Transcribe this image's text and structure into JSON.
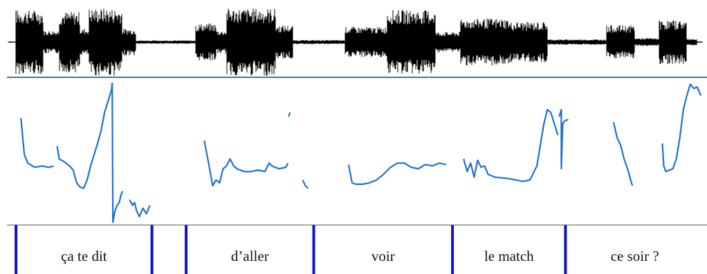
{
  "colors": {
    "waveform": "#000000",
    "divider": "#3b7a8c",
    "pitch": "#1f6fd6",
    "boundary": "#1010c8",
    "frame": "#555555",
    "text": "#111111"
  },
  "waveform": {
    "description_free": true,
    "segments": [
      {
        "from": 0.012,
        "to": 0.052,
        "amp": 0.95
      },
      {
        "from": 0.052,
        "to": 0.075,
        "amp": 0.35
      },
      {
        "from": 0.075,
        "to": 0.105,
        "amp": 0.9
      },
      {
        "from": 0.105,
        "to": 0.118,
        "amp": 0.4
      },
      {
        "from": 0.118,
        "to": 0.165,
        "amp": 1.0
      },
      {
        "from": 0.165,
        "to": 0.185,
        "amp": 0.4
      },
      {
        "from": 0.185,
        "to": 0.27,
        "amp": 0.05
      },
      {
        "from": 0.27,
        "to": 0.3,
        "amp": 0.55
      },
      {
        "from": 0.3,
        "to": 0.315,
        "amp": 0.35
      },
      {
        "from": 0.315,
        "to": 0.385,
        "amp": 1.0
      },
      {
        "from": 0.385,
        "to": 0.41,
        "amp": 0.5
      },
      {
        "from": 0.41,
        "to": 0.485,
        "amp": 0.06
      },
      {
        "from": 0.485,
        "to": 0.545,
        "amp": 0.45
      },
      {
        "from": 0.545,
        "to": 0.615,
        "amp": 0.95
      },
      {
        "from": 0.615,
        "to": 0.65,
        "amp": 0.3
      },
      {
        "from": 0.65,
        "to": 0.72,
        "amp": 0.7
      },
      {
        "from": 0.72,
        "to": 0.775,
        "amp": 0.6
      },
      {
        "from": 0.775,
        "to": 0.86,
        "amp": 0.08
      },
      {
        "from": 0.86,
        "to": 0.9,
        "amp": 0.5
      },
      {
        "from": 0.9,
        "to": 0.935,
        "amp": 0.12
      },
      {
        "from": 0.935,
        "to": 0.975,
        "amp": 0.65
      },
      {
        "from": 0.975,
        "to": 0.99,
        "amp": 0.1
      }
    ]
  },
  "pitch_contour": {
    "segments": [
      [
        [
          0.02,
          0.26
        ],
        [
          0.025,
          0.52
        ],
        [
          0.03,
          0.58
        ],
        [
          0.04,
          0.61
        ],
        [
          0.05,
          0.6
        ],
        [
          0.06,
          0.61
        ],
        [
          0.067,
          0.6
        ]
      ],
      [
        [
          0.072,
          0.46
        ],
        [
          0.075,
          0.55
        ],
        [
          0.082,
          0.57
        ],
        [
          0.09,
          0.6
        ],
        [
          0.095,
          0.63
        ],
        [
          0.1,
          0.72
        ],
        [
          0.105,
          0.75
        ],
        [
          0.11,
          0.76
        ],
        [
          0.115,
          0.7
        ],
        [
          0.12,
          0.6
        ],
        [
          0.125,
          0.52
        ],
        [
          0.13,
          0.44
        ],
        [
          0.135,
          0.35
        ],
        [
          0.14,
          0.22
        ],
        [
          0.145,
          0.14
        ],
        [
          0.15,
          0.06
        ],
        [
          0.151,
          0.01
        ]
      ],
      [
        [
          0.151,
          0.01
        ],
        [
          0.152,
          1.0
        ],
        [
          0.155,
          0.92
        ],
        [
          0.158,
          0.88
        ],
        [
          0.161,
          0.86
        ],
        [
          0.164,
          0.8
        ],
        [
          0.166,
          0.78
        ]
      ],
      [
        [
          0.176,
          0.84
        ],
        [
          0.18,
          0.88
        ],
        [
          0.183,
          0.86
        ],
        [
          0.186,
          0.92
        ],
        [
          0.19,
          0.96
        ],
        [
          0.195,
          0.9
        ],
        [
          0.2,
          0.94
        ],
        [
          0.205,
          0.88
        ]
      ],
      [
        [
          0.283,
          0.42
        ],
        [
          0.29,
          0.6
        ],
        [
          0.295,
          0.74
        ],
        [
          0.3,
          0.7
        ],
        [
          0.305,
          0.72
        ],
        [
          0.31,
          0.62
        ],
        [
          0.315,
          0.6
        ],
        [
          0.32,
          0.55
        ],
        [
          0.325,
          0.6
        ],
        [
          0.33,
          0.62
        ],
        [
          0.335,
          0.63
        ],
        [
          0.34,
          0.64
        ],
        [
          0.35,
          0.64
        ],
        [
          0.36,
          0.63
        ],
        [
          0.37,
          0.64
        ],
        [
          0.376,
          0.58
        ],
        [
          0.38,
          0.6
        ],
        [
          0.39,
          0.62
        ],
        [
          0.4,
          0.61
        ],
        [
          0.403,
          0.58
        ]
      ],
      [
        [
          0.404,
          0.25
        ],
        [
          0.406,
          0.22
        ]
      ],
      [
        [
          0.424,
          0.7
        ],
        [
          0.428,
          0.74
        ],
        [
          0.432,
          0.76
        ]
      ],
      [
        [
          0.49,
          0.59
        ],
        [
          0.495,
          0.72
        ],
        [
          0.5,
          0.73
        ],
        [
          0.51,
          0.73
        ],
        [
          0.52,
          0.72
        ],
        [
          0.53,
          0.7
        ],
        [
          0.54,
          0.66
        ],
        [
          0.55,
          0.61
        ],
        [
          0.56,
          0.58
        ],
        [
          0.57,
          0.58
        ],
        [
          0.58,
          0.61
        ],
        [
          0.59,
          0.62
        ],
        [
          0.6,
          0.59
        ],
        [
          0.61,
          0.6
        ],
        [
          0.62,
          0.58
        ],
        [
          0.63,
          0.59
        ]
      ],
      [
        [
          0.655,
          0.55
        ],
        [
          0.66,
          0.64
        ],
        [
          0.665,
          0.58
        ],
        [
          0.67,
          0.68
        ],
        [
          0.675,
          0.56
        ],
        [
          0.68,
          0.61
        ],
        [
          0.685,
          0.6
        ],
        [
          0.69,
          0.66
        ],
        [
          0.7,
          0.68
        ],
        [
          0.72,
          0.69
        ],
        [
          0.74,
          0.71
        ],
        [
          0.75,
          0.7
        ],
        [
          0.76,
          0.6
        ],
        [
          0.765,
          0.45
        ],
        [
          0.77,
          0.3
        ],
        [
          0.775,
          0.2
        ],
        [
          0.78,
          0.22
        ],
        [
          0.785,
          0.3
        ],
        [
          0.79,
          0.38
        ]
      ],
      [
        [
          0.792,
          0.25
        ],
        [
          0.795,
          0.2
        ],
        [
          0.795,
          0.62
        ],
        [
          0.797,
          0.3
        ],
        [
          0.8,
          0.28
        ],
        [
          0.805,
          0.27
        ]
      ],
      [
        [
          0.87,
          0.29
        ],
        [
          0.875,
          0.4
        ],
        [
          0.88,
          0.45
        ],
        [
          0.885,
          0.55
        ],
        [
          0.89,
          0.62
        ],
        [
          0.895,
          0.71
        ],
        [
          0.897,
          0.74
        ]
      ],
      [
        [
          0.94,
          0.44
        ],
        [
          0.942,
          0.6
        ],
        [
          0.945,
          0.64
        ],
        [
          0.95,
          0.63
        ],
        [
          0.955,
          0.62
        ],
        [
          0.96,
          0.55
        ],
        [
          0.965,
          0.4
        ],
        [
          0.97,
          0.2
        ],
        [
          0.975,
          0.1
        ],
        [
          0.98,
          0.02
        ],
        [
          0.985,
          0.05
        ],
        [
          0.99,
          0.04
        ],
        [
          0.995,
          0.1
        ]
      ]
    ]
  },
  "words": [
    {
      "text": "ça te dit",
      "from": 0.013,
      "to": 0.208
    },
    {
      "text": "",
      "from": 0.208,
      "to": 0.257
    },
    {
      "text": "d’aller",
      "from": 0.257,
      "to": 0.44
    },
    {
      "text": "voir",
      "from": 0.44,
      "to": 0.639
    },
    {
      "text": "le match",
      "from": 0.639,
      "to": 0.801
    },
    {
      "text": "ce soir ?",
      "from": 0.801,
      "to": 1.0
    }
  ]
}
